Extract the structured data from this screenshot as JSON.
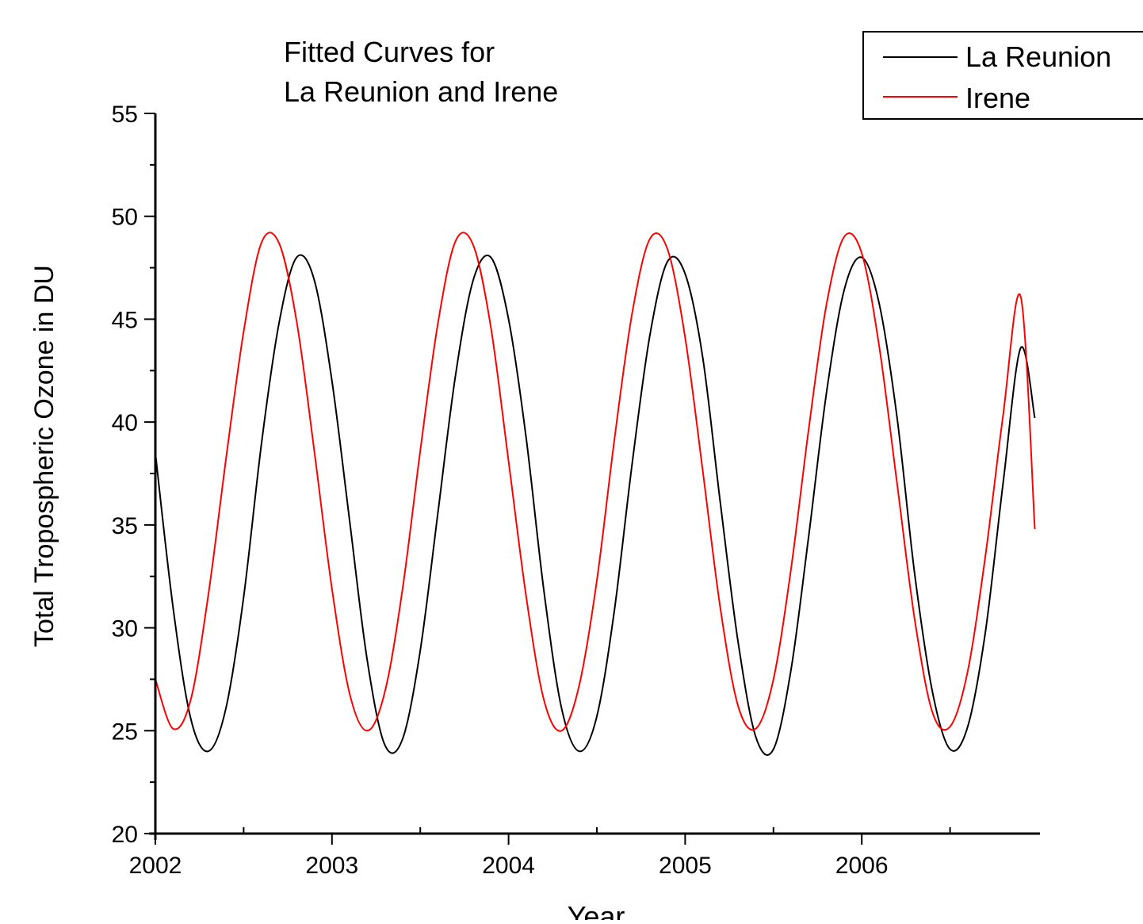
{
  "chart_data": {
    "type": "line",
    "title_lines": [
      "Fitted Curves for",
      "La Reunion and Irene"
    ],
    "xlabel": "Year",
    "ylabel": "Total Tropospheric Ozone in DU",
    "xlim": [
      2002,
      2007
    ],
    "ylim": [
      20,
      55
    ],
    "x_ticks": [
      2002,
      2003,
      2004,
      2005,
      2006
    ],
    "x_minor_ticks": [
      2002.5,
      2003.5,
      2004.5,
      2005.5,
      2006.5
    ],
    "x_tick_labels": [
      "2002",
      "2003",
      "2004",
      "2005",
      "2006"
    ],
    "y_ticks": [
      20,
      25,
      30,
      35,
      40,
      45,
      50,
      55
    ],
    "y_tick_labels": [
      "20",
      "25",
      "30",
      "35",
      "40",
      "45",
      "50",
      "55"
    ],
    "legend": {
      "position": "top-right"
    },
    "grid": false,
    "series": [
      {
        "name": "La Reunion",
        "color": "#000000",
        "x": [
          2002.0,
          2002.1,
          2002.2,
          2002.3,
          2002.4,
          2002.5,
          2002.6,
          2002.7,
          2002.8,
          2002.9,
          2003.0,
          2003.1,
          2003.2,
          2003.3,
          2003.4,
          2003.5,
          2003.6,
          2003.7,
          2003.8,
          2003.9,
          2004.0,
          2004.1,
          2004.2,
          2004.3,
          2004.4,
          2004.5,
          2004.6,
          2004.7,
          2004.8,
          2004.9,
          2005.0,
          2005.1,
          2005.2,
          2005.3,
          2005.4,
          2005.5,
          2005.6,
          2005.7,
          2005.8,
          2005.9,
          2006.0,
          2006.1,
          2006.2,
          2006.3,
          2006.4,
          2006.5,
          2006.6,
          2006.7,
          2006.8,
          2006.9,
          2006.98
        ],
        "y": [
          38.5,
          31.0,
          25.6,
          24.0,
          26.1,
          31.5,
          38.9,
          44.8,
          48.0,
          46.9,
          42.0,
          35.2,
          28.4,
          24.3,
          24.6,
          28.9,
          35.6,
          42.3,
          46.9,
          48.0,
          45.0,
          39.2,
          31.8,
          26.1,
          24.0,
          25.7,
          30.9,
          38.0,
          44.2,
          47.8,
          47.2,
          43.1,
          36.0,
          29.3,
          24.7,
          24.1,
          28.0,
          34.5,
          41.4,
          46.4,
          48.0,
          45.7,
          40.2,
          32.6,
          26.9,
          24.1,
          25.2,
          29.8,
          37.0,
          43.6,
          40.2
        ]
      },
      {
        "name": "Irene",
        "color": "#ff0000",
        "x": [
          2002.0,
          2002.1,
          2002.2,
          2002.3,
          2002.4,
          2002.5,
          2002.6,
          2002.7,
          2002.8,
          2002.9,
          2003.0,
          2003.1,
          2003.2,
          2003.3,
          2003.4,
          2003.5,
          2003.6,
          2003.7,
          2003.8,
          2003.9,
          2004.0,
          2004.1,
          2004.2,
          2004.3,
          2004.4,
          2004.5,
          2004.6,
          2004.7,
          2004.8,
          2004.9,
          2005.0,
          2005.1,
          2005.2,
          2005.3,
          2005.4,
          2005.5,
          2005.6,
          2005.7,
          2005.8,
          2005.9,
          2006.0,
          2006.1,
          2006.2,
          2006.3,
          2006.4,
          2006.5,
          2006.6,
          2006.7,
          2006.8,
          2006.9,
          2006.98
        ],
        "y": [
          27.5,
          25.1,
          26.5,
          31.6,
          38.2,
          44.4,
          48.7,
          48.7,
          44.9,
          38.6,
          31.9,
          26.8,
          25.0,
          26.9,
          31.9,
          38.6,
          44.8,
          48.8,
          48.6,
          44.6,
          38.1,
          31.5,
          26.5,
          25.0,
          27.2,
          32.3,
          39.2,
          45.3,
          48.9,
          48.4,
          44.1,
          37.6,
          30.9,
          26.2,
          25.1,
          27.5,
          32.9,
          39.7,
          45.7,
          49.0,
          48.2,
          43.6,
          37.0,
          30.4,
          25.9,
          25.2,
          27.9,
          33.5,
          40.3,
          46.1,
          34.8
        ]
      }
    ]
  }
}
